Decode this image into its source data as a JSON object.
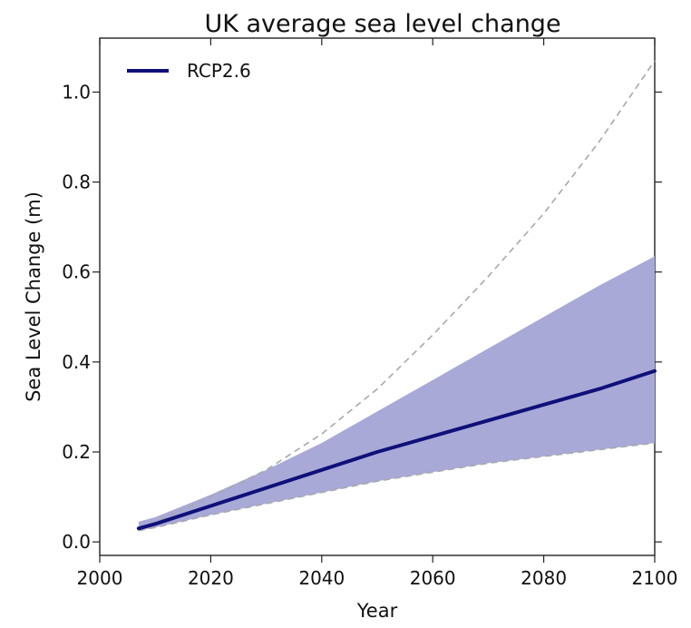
{
  "chart_data": {
    "type": "line",
    "title": "UK average sea level change",
    "xlabel": "Year",
    "ylabel": "Sea Level Change (m)",
    "xlim": [
      2000,
      2100
    ],
    "ylim": [
      -0.03,
      1.12
    ],
    "xticks": [
      2000,
      2020,
      2040,
      2060,
      2080,
      2100
    ],
    "yticks": [
      0.0,
      0.2,
      0.4,
      0.6,
      0.8,
      1.0
    ],
    "xtick_labels": [
      "2000",
      "2020",
      "2040",
      "2060",
      "2080",
      "2100"
    ],
    "ytick_labels": [
      "0.0",
      "0.2",
      "0.4",
      "0.6",
      "0.8",
      "1.0"
    ],
    "grid": false,
    "legend": {
      "position": "top-left",
      "entries": [
        "RCP2.6"
      ]
    },
    "series": [
      {
        "name": "RCP2.6",
        "color": "#10107a",
        "x": [
          2007,
          2010,
          2020,
          2030,
          2040,
          2050,
          2060,
          2070,
          2080,
          2090,
          2100
        ],
        "values": [
          0.03,
          0.04,
          0.08,
          0.12,
          0.16,
          0.2,
          0.235,
          0.27,
          0.305,
          0.34,
          0.38
        ]
      }
    ],
    "band": {
      "color": "#a9a9d8",
      "x": [
        2007,
        2010,
        2020,
        2030,
        2040,
        2050,
        2060,
        2070,
        2080,
        2090,
        2100
      ],
      "upper": [
        0.045,
        0.055,
        0.105,
        0.16,
        0.22,
        0.29,
        0.36,
        0.43,
        0.5,
        0.57,
        0.635
      ],
      "lower": [
        0.025,
        0.032,
        0.06,
        0.085,
        0.11,
        0.135,
        0.155,
        0.175,
        0.19,
        0.205,
        0.22
      ]
    },
    "reference_lines": [
      {
        "style": "dashed",
        "color": "#a8a8a8",
        "x": [
          2007,
          2010,
          2020,
          2030,
          2040,
          2050,
          2060,
          2070,
          2080,
          2090,
          2100
        ],
        "values": [
          0.03,
          0.045,
          0.1,
          0.16,
          0.24,
          0.34,
          0.46,
          0.59,
          0.73,
          0.89,
          1.07
        ]
      },
      {
        "style": "dashed",
        "color": "#a8a8a8",
        "x": [
          2007,
          2010,
          2020,
          2030,
          2040,
          2050,
          2060,
          2070,
          2080,
          2090,
          2100
        ],
        "values": [
          0.025,
          0.032,
          0.06,
          0.085,
          0.11,
          0.135,
          0.155,
          0.175,
          0.19,
          0.205,
          0.22
        ]
      }
    ]
  }
}
